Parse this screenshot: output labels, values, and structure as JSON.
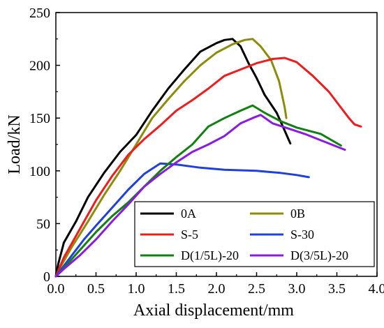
{
  "chart_data": {
    "type": "line",
    "xlabel": "Axial displacement/mm",
    "ylabel": "Load/kN",
    "xlim": [
      0.0,
      4.0
    ],
    "ylim": [
      0,
      250
    ],
    "xticks": [
      "0.0",
      "0.5",
      "1.0",
      "1.5",
      "2.0",
      "2.5",
      "3.0",
      "3.5",
      "4.0"
    ],
    "yticks": [
      "0",
      "50",
      "100",
      "150",
      "200",
      "250"
    ],
    "grid": false,
    "legend_position": "bottom-right",
    "series": [
      {
        "name": "0A",
        "color": "#000000",
        "x": [
          0,
          0.03,
          0.1,
          0.25,
          0.4,
          0.6,
          0.8,
          1.0,
          1.2,
          1.4,
          1.6,
          1.8,
          2.0,
          2.1,
          2.2,
          2.3,
          2.4,
          2.5,
          2.6,
          2.75,
          2.85,
          2.92
        ],
        "y": [
          0,
          12,
          32,
          52,
          75,
          98,
          118,
          134,
          157,
          178,
          196,
          213,
          221,
          224,
          225,
          218,
          202,
          188,
          172,
          155,
          138,
          126
        ]
      },
      {
        "name": "0B",
        "color": "#8c8c0a",
        "x": [
          0,
          0.05,
          0.2,
          0.4,
          0.6,
          0.8,
          1.0,
          1.2,
          1.4,
          1.6,
          1.8,
          2.0,
          2.2,
          2.35,
          2.45,
          2.55,
          2.68,
          2.78,
          2.85,
          2.87
        ],
        "y": [
          0,
          8,
          28,
          52,
          77,
          100,
          125,
          150,
          168,
          185,
          200,
          212,
          220,
          224,
          225,
          218,
          205,
          185,
          160,
          150
        ]
      },
      {
        "name": "S-5",
        "color": "#ee1c1c",
        "x": [
          0,
          0.1,
          0.3,
          0.5,
          0.7,
          0.9,
          1.1,
          1.3,
          1.5,
          1.7,
          1.9,
          2.1,
          2.3,
          2.5,
          2.7,
          2.85,
          3.0,
          3.2,
          3.4,
          3.55,
          3.65,
          3.72,
          3.8
        ],
        "y": [
          0,
          18,
          45,
          72,
          95,
          115,
          130,
          143,
          157,
          167,
          178,
          190,
          196,
          202,
          206,
          207,
          203,
          190,
          175,
          160,
          150,
          144,
          142
        ]
      },
      {
        "name": "S-30",
        "color": "#1f3fe0",
        "x": [
          0,
          0.1,
          0.2,
          0.35,
          0.5,
          0.7,
          0.9,
          1.1,
          1.3,
          1.5,
          1.8,
          2.1,
          2.5,
          2.8,
          3.0,
          3.15
        ],
        "y": [
          0,
          10,
          20,
          35,
          48,
          65,
          82,
          97,
          107,
          106,
          103,
          101,
          100,
          98,
          96,
          94
        ]
      },
      {
        "name": "D(1/5L)-20",
        "color": "#108010",
        "x": [
          0,
          0.1,
          0.3,
          0.5,
          0.7,
          0.9,
          1.1,
          1.3,
          1.5,
          1.7,
          1.9,
          2.1,
          2.3,
          2.45,
          2.6,
          2.8,
          3.0,
          3.3,
          3.55
        ],
        "y": [
          0,
          8,
          25,
          42,
          57,
          70,
          85,
          100,
          113,
          125,
          142,
          150,
          157,
          162,
          155,
          147,
          141,
          135,
          124
        ]
      },
      {
        "name": "D(3/5L)-20",
        "color": "#8a1be0",
        "x": [
          0,
          0.1,
          0.3,
          0.5,
          0.7,
          0.9,
          1.1,
          1.3,
          1.5,
          1.7,
          1.9,
          2.1,
          2.3,
          2.45,
          2.55,
          2.7,
          2.9,
          3.1,
          3.3,
          3.6
        ],
        "y": [
          0,
          7,
          20,
          35,
          52,
          68,
          85,
          97,
          108,
          118,
          125,
          133,
          145,
          150,
          153,
          145,
          140,
          135,
          129,
          120
        ]
      }
    ]
  }
}
